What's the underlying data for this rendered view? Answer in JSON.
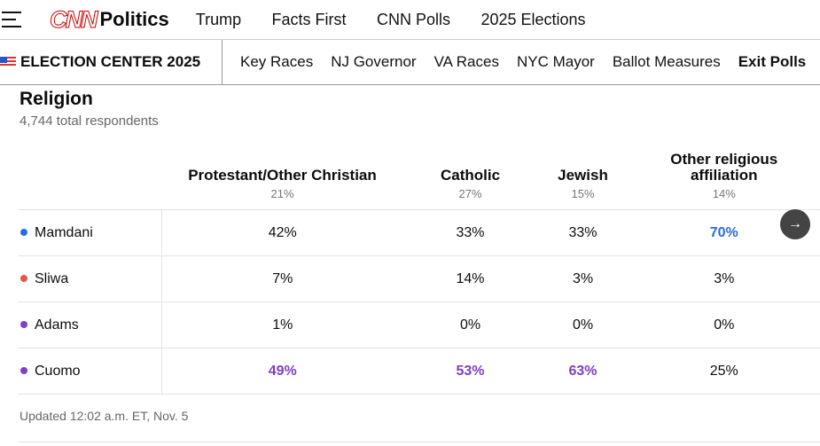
{
  "header": {
    "logo": "CNN",
    "section": "Politics",
    "nav": [
      "Trump",
      "Facts First",
      "CNN Polls",
      "2025 Elections"
    ]
  },
  "subnav": {
    "title": "ELECTION CENTER 2025",
    "links": [
      "Key Races",
      "NJ Governor",
      "VA Races",
      "NYC Mayor",
      "Ballot Measures",
      "Exit Polls"
    ]
  },
  "section": {
    "title": "Religion",
    "respondents": "4,744 total respondents"
  },
  "columns": [
    {
      "label": "Protestant/Other Christian",
      "share": "21%"
    },
    {
      "label": "Catholic",
      "share": "27%"
    },
    {
      "label": "Jewish",
      "share": "15%"
    },
    {
      "label": "Other religious affiliation",
      "share": "14%"
    }
  ],
  "rows": [
    {
      "name": "Mamdani",
      "color": "#2a6be0",
      "values": [
        "42%",
        "33%",
        "33%",
        "70%"
      ]
    },
    {
      "name": "Sliwa",
      "color": "#e8554e",
      "values": [
        "7%",
        "14%",
        "3%",
        "3%"
      ]
    },
    {
      "name": "Adams",
      "color": "#7d3fc7",
      "values": [
        "1%",
        "0%",
        "0%",
        "0%"
      ]
    },
    {
      "name": "Cuomo",
      "color": "#7d3fc7",
      "values": [
        "49%",
        "53%",
        "63%",
        "25%"
      ]
    }
  ],
  "winners": [
    [
      0,
      3
    ],
    [
      3,
      0
    ],
    [
      3,
      1
    ],
    [
      3,
      2
    ]
  ],
  "updated": "Updated 12:02 a.m. ET, Nov. 5"
}
